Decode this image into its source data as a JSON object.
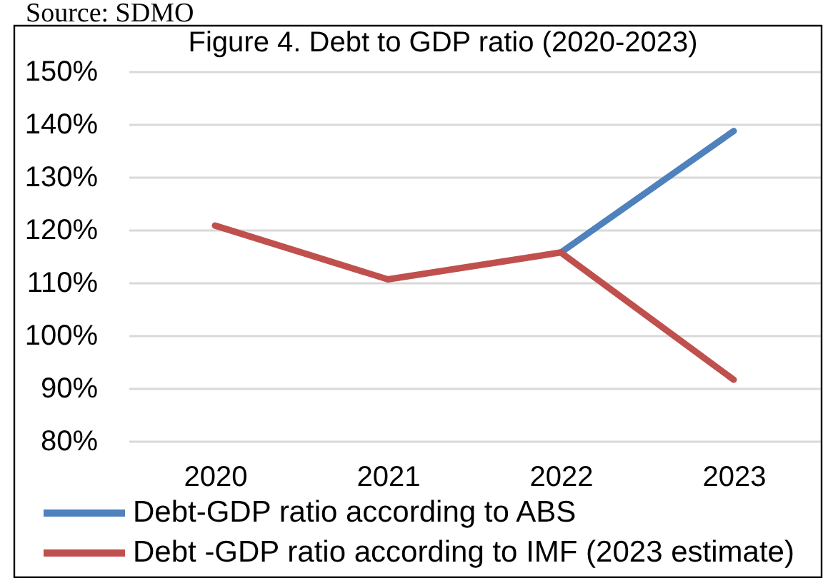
{
  "chart_data": {
    "type": "line",
    "title": "Figure 4. Debt to GDP ratio (2020-2023)",
    "categories": [
      "2020",
      "2021",
      "2022",
      "2023"
    ],
    "series": [
      {
        "name": "Debt-GDP ratio according to ABS",
        "color": "#4f81bd",
        "values": [
          null,
          null,
          115.7,
          138.7
        ]
      },
      {
        "name": "Debt -GDP ratio according to IMF (2023 estimate)",
        "color": "#c0504d",
        "values": [
          120.8,
          110.6,
          115.7,
          91.6
        ]
      }
    ],
    "ylim": [
      80,
      150
    ],
    "yticks": [
      {
        "value": 80,
        "label": "80%"
      },
      {
        "value": 90,
        "label": "90%"
      },
      {
        "value": 100,
        "label": "100%"
      },
      {
        "value": 110,
        "label": "110%"
      },
      {
        "value": 120,
        "label": "120%"
      },
      {
        "value": 130,
        "label": "130%"
      },
      {
        "value": 140,
        "label": "140%"
      },
      {
        "value": 150,
        "label": "150%"
      }
    ],
    "grid": "y",
    "legend": "bottom",
    "line_style": "solid",
    "annotations": [
      "Source: SDMO"
    ]
  }
}
